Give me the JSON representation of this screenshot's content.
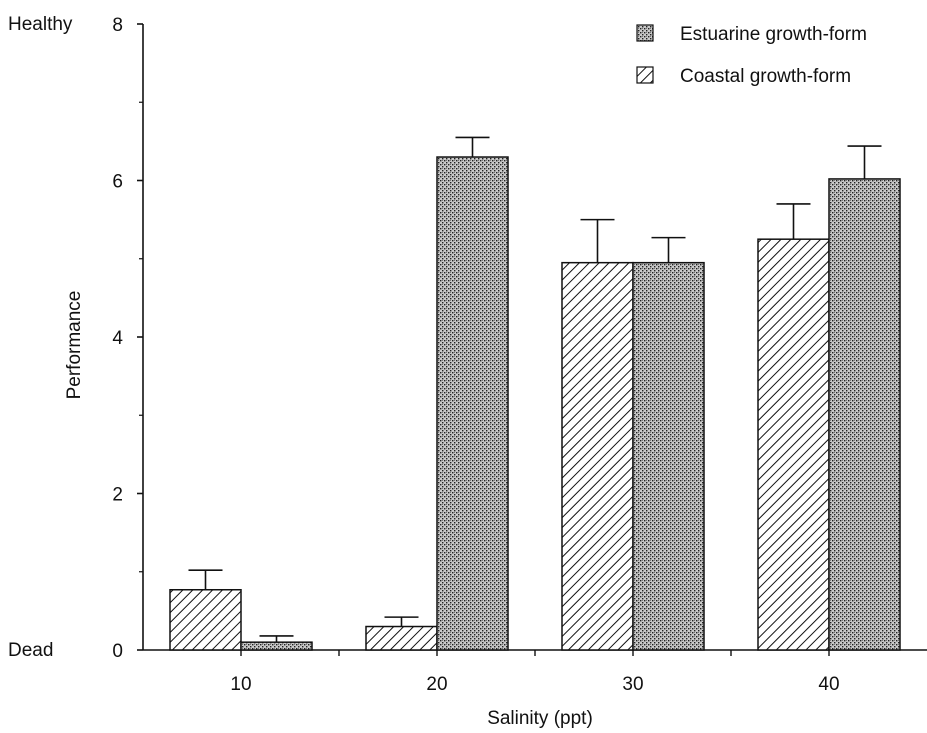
{
  "chart_data": {
    "type": "bar",
    "categories": [
      "10",
      "20",
      "30",
      "40"
    ],
    "xlabel": "Salinity (ppt)",
    "ylabel": "Performance",
    "ylim": [
      0,
      8
    ],
    "yticks": [
      "0",
      "2",
      "4",
      "6",
      "8"
    ],
    "y_top_annotation": "Healthy",
    "y_bottom_annotation": "Dead",
    "legend_position": "top-right",
    "grid": false,
    "series": [
      {
        "name": "Coastal growth-form",
        "pattern": "diagonal-hatch",
        "values": [
          0.77,
          0.3,
          4.95,
          5.25
        ],
        "errors": [
          0.25,
          0.12,
          0.55,
          0.45
        ]
      },
      {
        "name": "Estuarine growth-form",
        "pattern": "crosshatch-stipple",
        "values": [
          0.1,
          6.3,
          4.95,
          6.02
        ],
        "errors": [
          0.08,
          0.25,
          0.32,
          0.42
        ]
      }
    ],
    "legend_order": [
      "Estuarine growth-form",
      "Coastal growth-form"
    ]
  }
}
